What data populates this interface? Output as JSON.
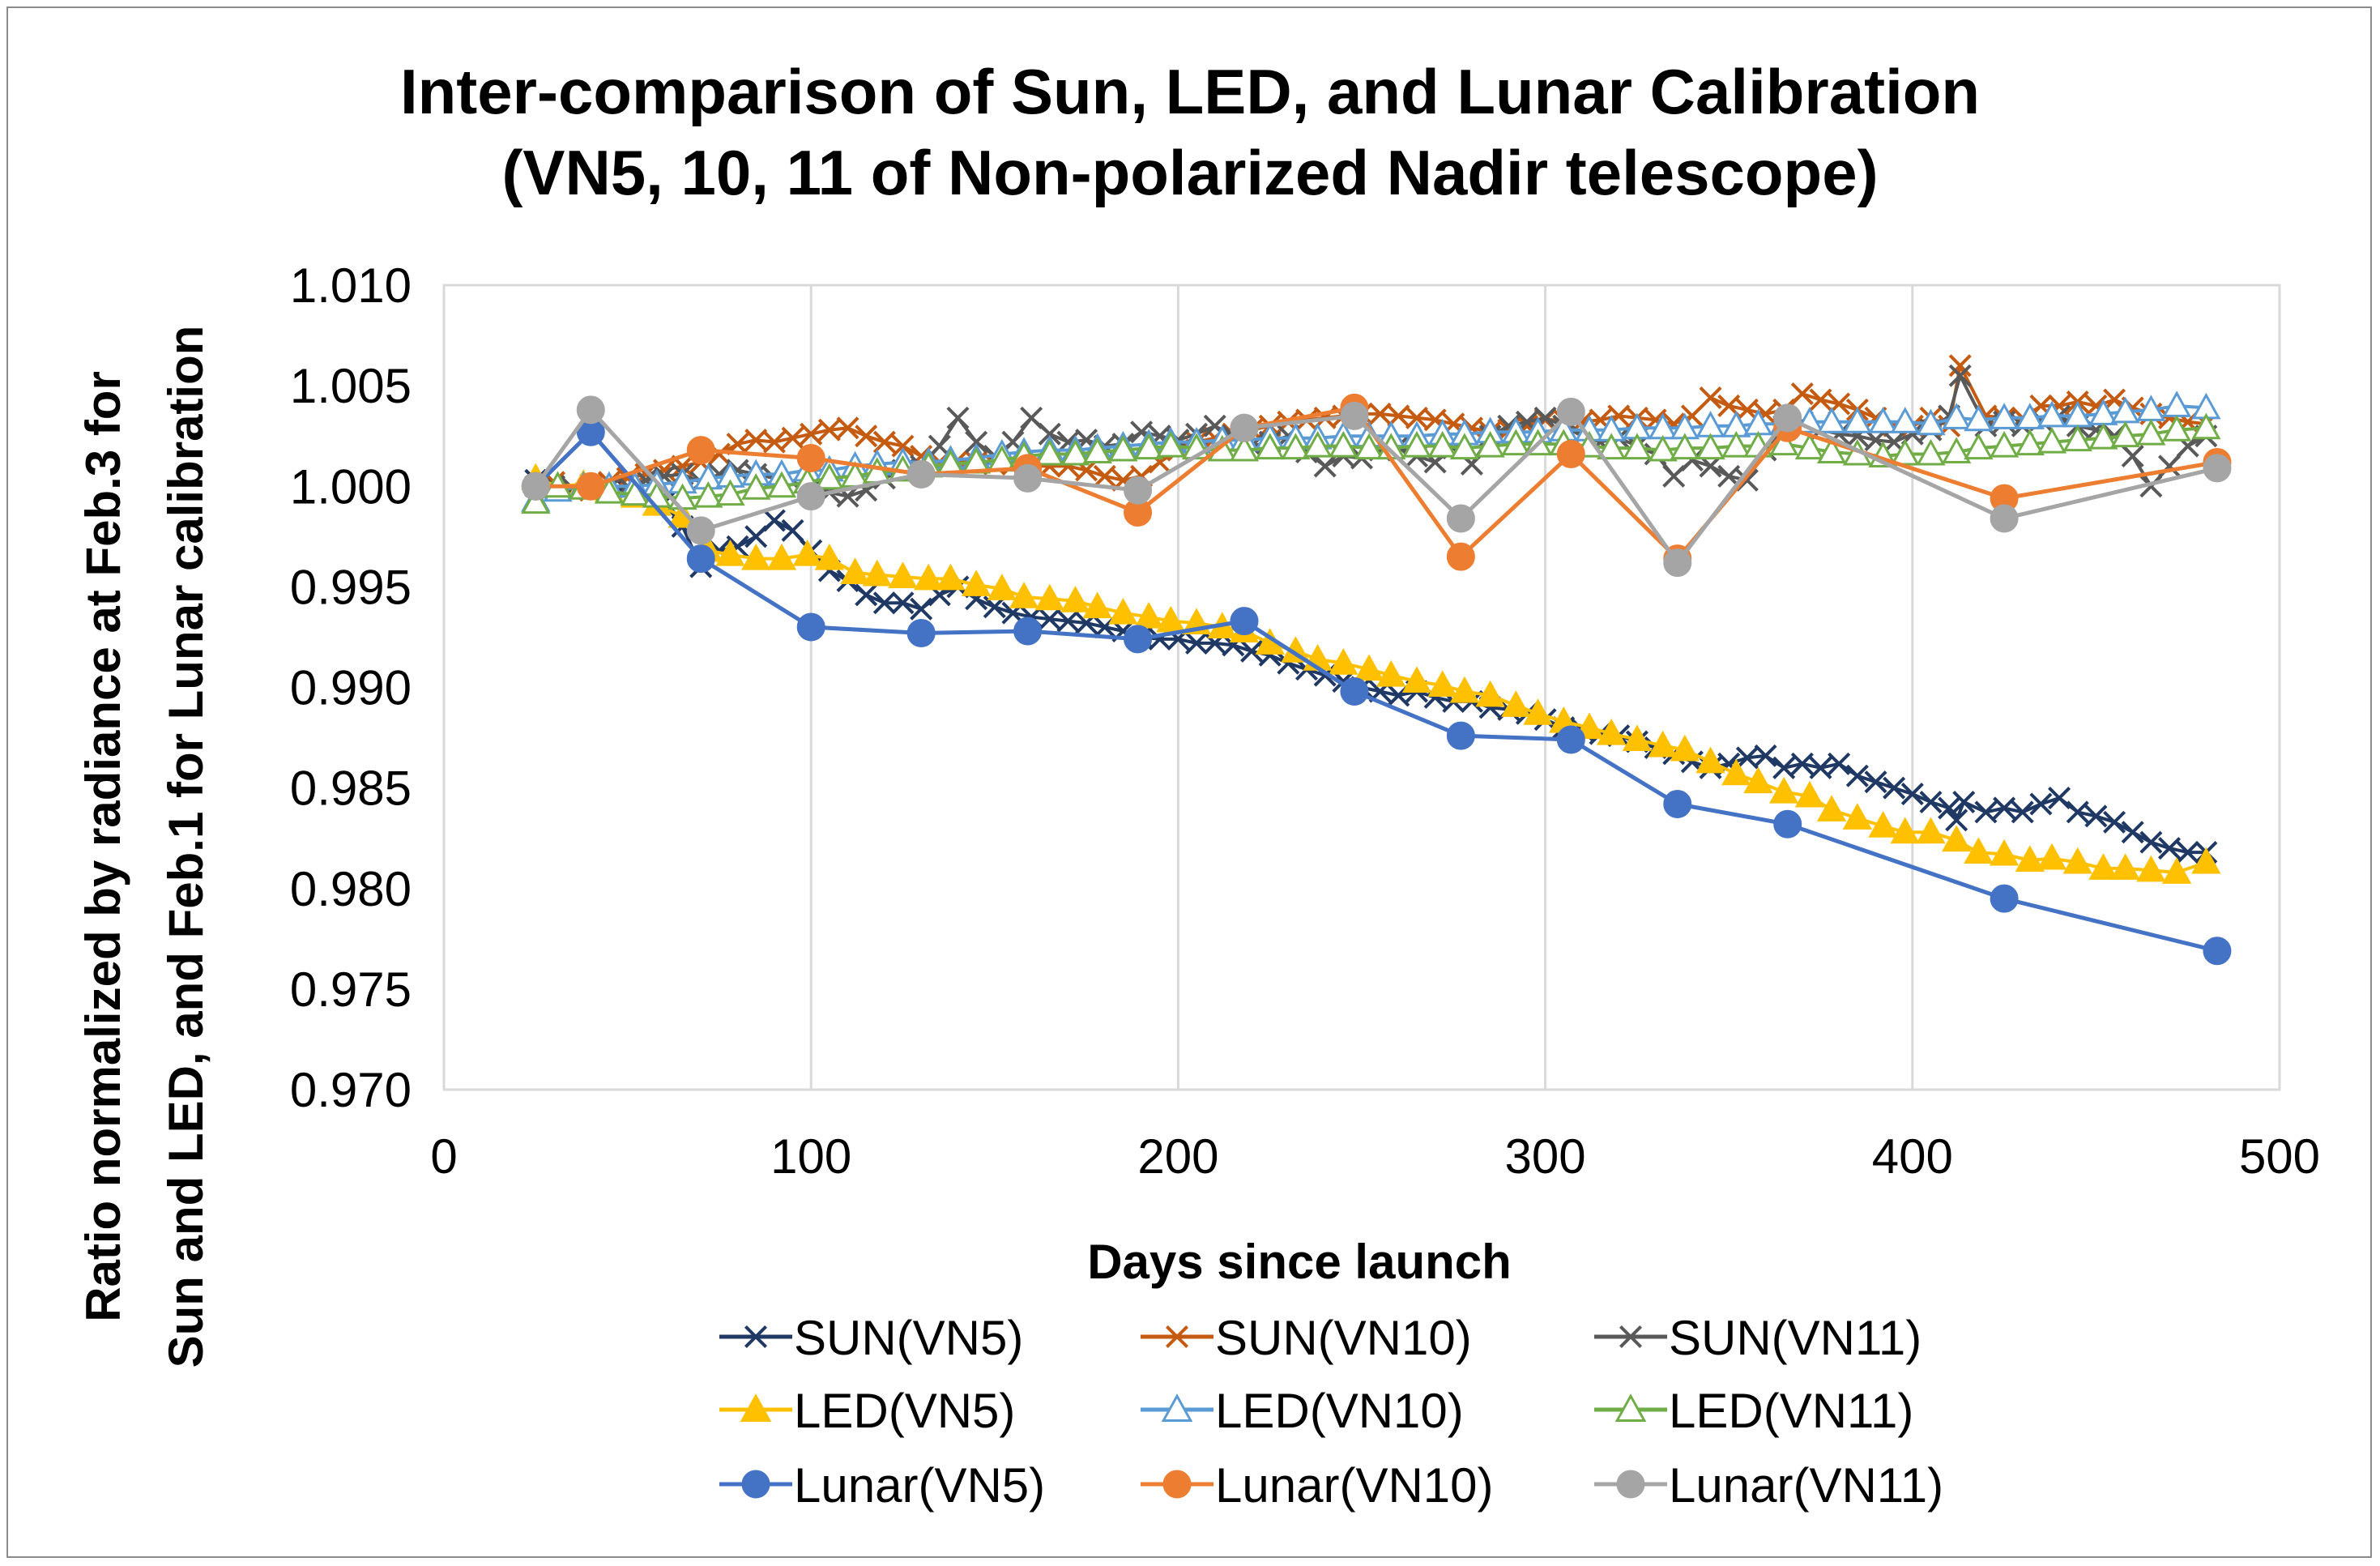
{
  "chart_data": {
    "type": "line",
    "title": [
      "Inter-comparison of Sun, LED, and Lunar Calibration",
      "(VN5, 10, 11 of Non-polarized Nadir telescope)"
    ],
    "xlabel": "Days since launch",
    "ylabel": [
      "Ratio normalized by radiance at Feb.3 for",
      "Sun and LED, and Feb.1 for Lunar calibration"
    ],
    "xlim": [
      0,
      500
    ],
    "ylim": [
      0.97,
      1.01
    ],
    "xticks": [
      0,
      100,
      200,
      300,
      400,
      500
    ],
    "xtick_labels": [
      "0",
      "100",
      "200",
      "300",
      "400",
      "500"
    ],
    "yticks": [
      0.97,
      0.975,
      0.98,
      0.985,
      0.99,
      0.995,
      1.0,
      1.005,
      1.01
    ],
    "ytick_labels": [
      "0.970",
      "0.975",
      "0.980",
      "0.985",
      "0.990",
      "0.995",
      "1.000",
      "1.005",
      "1.010"
    ],
    "grid": "vertical",
    "legend_position": "bottom",
    "series": [
      {
        "name": "SUN(VN5)",
        "color": "#1f3864",
        "marker": "x",
        "x": [
          25,
          30,
          35,
          40,
          45,
          50,
          55,
          60,
          65,
          70,
          75,
          80,
          85,
          90,
          95,
          100,
          105,
          110,
          115,
          120,
          125,
          130,
          135,
          140,
          145,
          150,
          155,
          160,
          165,
          170,
          175,
          180,
          185,
          190,
          195,
          200,
          205,
          210,
          215,
          220,
          225,
          230,
          235,
          240,
          245,
          250,
          255,
          260,
          265,
          270,
          275,
          280,
          285,
          290,
          295,
          300,
          305,
          310,
          315,
          320,
          325,
          330,
          335,
          340,
          345,
          350,
          355,
          360,
          365,
          370,
          375,
          380,
          385,
          390,
          395,
          400,
          405,
          410,
          412,
          414,
          420,
          425,
          430,
          435,
          440,
          445,
          450,
          455,
          460,
          465,
          470,
          475,
          480
        ],
        "y": [
          1.0003,
          1.0,
          0.9999,
          1.0,
          0.9999,
          0.9998,
          0.9996,
          0.9992,
          0.998,
          0.996,
          0.9968,
          0.997,
          0.9975,
          0.9983,
          0.9978,
          0.9968,
          0.9958,
          0.9953,
          0.9946,
          0.9942,
          0.9942,
          0.9939,
          0.9946,
          0.995,
          0.9944,
          0.994,
          0.9937,
          0.9935,
          0.9934,
          0.9933,
          0.9932,
          0.993,
          0.9928,
          0.9925,
          0.9924,
          0.9924,
          0.9922,
          0.9922,
          0.9921,
          0.9918,
          0.9916,
          0.9912,
          0.9909,
          0.9906,
          0.9903,
          0.99,
          0.9898,
          0.9896,
          0.9898,
          0.9895,
          0.9893,
          0.9893,
          0.989,
          0.9889,
          0.9887,
          0.9884,
          0.988,
          0.9879,
          0.9877,
          0.9876,
          0.9873,
          0.987,
          0.9867,
          0.9863,
          0.986,
          0.9862,
          0.9865,
          0.9866,
          0.986,
          0.9862,
          0.986,
          0.9862,
          0.9856,
          0.9853,
          0.985,
          0.9847,
          0.9843,
          0.984,
          0.9834,
          0.9843,
          0.9838,
          0.984,
          0.9838,
          0.9842,
          0.9845,
          0.9838,
          0.9836,
          0.9833,
          0.9828,
          0.9823,
          0.982,
          0.9818,
          0.9818
        ]
      },
      {
        "name": "SUN(VN10)",
        "color": "#c55a11",
        "marker": "x",
        "x": [
          25,
          30,
          35,
          40,
          45,
          50,
          55,
          60,
          65,
          70,
          75,
          80,
          85,
          90,
          95,
          100,
          105,
          110,
          115,
          120,
          125,
          130,
          135,
          140,
          145,
          150,
          155,
          160,
          165,
          170,
          175,
          180,
          185,
          190,
          195,
          200,
          205,
          210,
          215,
          220,
          225,
          230,
          235,
          240,
          245,
          250,
          255,
          260,
          265,
          270,
          275,
          280,
          285,
          290,
          295,
          300,
          305,
          310,
          315,
          320,
          325,
          330,
          335,
          340,
          345,
          350,
          355,
          360,
          365,
          370,
          375,
          380,
          385,
          390,
          395,
          400,
          405,
          410,
          413,
          420,
          425,
          430,
          435,
          440,
          445,
          450,
          455,
          460,
          465,
          470,
          475,
          480
        ],
        "y": [
          0.9995,
          1.0002,
          0.9998,
          1.0001,
          1.0002,
          1.0004,
          1.0006,
          1.0008,
          1.001,
          1.0012,
          1.0016,
          1.0021,
          1.0023,
          1.0022,
          1.0024,
          1.0026,
          1.0028,
          1.0029,
          1.0025,
          1.0022,
          1.002,
          1.0015,
          1.0012,
          1.0013,
          1.0012,
          1.0011,
          1.0011,
          1.001,
          1.001,
          1.001,
          1.0008,
          1.0005,
          1.0003,
          1.0005,
          1.0012,
          1.0018,
          1.0022,
          1.0024,
          1.0026,
          1.0028,
          1.003,
          1.0032,
          1.0033,
          1.0034,
          1.0035,
          1.0036,
          1.0036,
          1.0035,
          1.0034,
          1.0033,
          1.0031,
          1.0029,
          1.0027,
          1.0028,
          1.003,
          1.0033,
          1.0033,
          1.0032,
          1.0033,
          1.0035,
          1.0034,
          1.0033,
          1.0031,
          1.0035,
          1.0044,
          1.004,
          1.0038,
          1.0036,
          1.0038,
          1.0046,
          1.0043,
          1.0041,
          1.0038,
          1.0034,
          1.003,
          1.003,
          1.0034,
          1.003,
          1.006,
          1.0035,
          1.0034,
          1.0034,
          1.004,
          1.004,
          1.0042,
          1.004,
          1.0043,
          1.0039,
          1.0036,
          1.0034,
          1.0032,
          1.0031
        ]
      },
      {
        "name": "SUN(VN11)",
        "color": "#595959",
        "marker": "x",
        "x": [
          25,
          30,
          35,
          40,
          45,
          50,
          55,
          60,
          65,
          70,
          75,
          80,
          85,
          90,
          95,
          100,
          105,
          110,
          115,
          120,
          125,
          130,
          135,
          140,
          145,
          150,
          155,
          160,
          165,
          170,
          175,
          180,
          185,
          190,
          195,
          200,
          205,
          210,
          215,
          220,
          225,
          230,
          235,
          240,
          245,
          250,
          255,
          260,
          265,
          270,
          275,
          280,
          285,
          290,
          295,
          300,
          305,
          310,
          315,
          320,
          325,
          330,
          335,
          340,
          345,
          350,
          355,
          360,
          365,
          370,
          375,
          380,
          385,
          390,
          395,
          400,
          405,
          410,
          413,
          420,
          425,
          430,
          435,
          440,
          445,
          450,
          455,
          460,
          465,
          470,
          475,
          480
        ],
        "y": [
          1.0,
          1.0,
          0.9999,
          1.0,
          0.9999,
          1.0,
          1.0003,
          1.0005,
          1.0006,
          1.0002,
          1.0006,
          1.0008,
          1.0006,
          1.0004,
          1.0002,
          0.9999,
          0.9997,
          0.9995,
          0.9998,
          1.0004,
          1.0008,
          1.001,
          1.002,
          1.0034,
          1.0022,
          1.0015,
          1.0022,
          1.0034,
          1.0026,
          1.0022,
          1.0023,
          1.002,
          1.0021,
          1.0027,
          1.0025,
          1.0023,
          1.0026,
          1.003,
          1.0025,
          1.002,
          1.0022,
          1.0025,
          1.0017,
          1.001,
          1.0015,
          1.0014,
          1.0018,
          1.002,
          1.0015,
          1.0012,
          1.0019,
          1.0011,
          1.0025,
          1.003,
          1.0032,
          1.0034,
          1.003,
          1.0025,
          1.0022,
          1.0024,
          1.002,
          1.0016,
          1.0005,
          1.0013,
          1.001,
          1.0005,
          1.0003,
          1.0018,
          1.003,
          1.0032,
          1.0028,
          1.0026,
          1.0025,
          1.0023,
          1.0022,
          1.0026,
          1.0028,
          1.0035,
          1.0055,
          1.003,
          1.0032,
          1.003,
          1.0033,
          1.0035,
          1.003,
          1.0028,
          1.0025,
          1.0015,
          1.0,
          1.001,
          1.002,
          1.0025
        ]
      },
      {
        "name": "LED(VN5)",
        "color": "#ffc000",
        "marker": "triangle-filled",
        "x": [
          25,
          31,
          38,
          45,
          52,
          58,
          65,
          72,
          78,
          85,
          92,
          99,
          105,
          112,
          118,
          125,
          132,
          138,
          145,
          152,
          158,
          165,
          172,
          178,
          185,
          192,
          198,
          205,
          212,
          218,
          225,
          232,
          238,
          245,
          252,
          258,
          265,
          272,
          278,
          285,
          292,
          298,
          305,
          312,
          318,
          325,
          332,
          338,
          345,
          352,
          358,
          365,
          372,
          378,
          385,
          392,
          398,
          405,
          412,
          418,
          425,
          432,
          438,
          445,
          452,
          458,
          465,
          472,
          480
        ],
        "y": [
          1.0004,
          1.0,
          1.0001,
          0.9998,
          0.9995,
          0.9991,
          0.9985,
          0.9968,
          0.9966,
          0.9964,
          0.9964,
          0.9966,
          0.9964,
          0.9957,
          0.9956,
          0.9955,
          0.9954,
          0.9954,
          0.9951,
          0.9949,
          0.9945,
          0.9944,
          0.9943,
          0.994,
          0.9937,
          0.9935,
          0.9933,
          0.9932,
          0.993,
          0.9928,
          0.9922,
          0.9918,
          0.9914,
          0.9912,
          0.9909,
          0.9906,
          0.9903,
          0.9901,
          0.9898,
          0.9896,
          0.9891,
          0.9887,
          0.9883,
          0.988,
          0.9877,
          0.9874,
          0.9871,
          0.9869,
          0.9863,
          0.9857,
          0.9853,
          0.9848,
          0.9846,
          0.9839,
          0.9835,
          0.9831,
          0.9828,
          0.9828,
          0.9824,
          0.9818,
          0.9817,
          0.9814,
          0.9815,
          0.9813,
          0.981,
          0.981,
          0.9809,
          0.9808,
          0.9813
        ]
      },
      {
        "name": "LED(VN10)",
        "color": "#5b9bd5",
        "marker": "triangle-open",
        "x": [
          25,
          31,
          38,
          45,
          52,
          58,
          65,
          72,
          78,
          85,
          92,
          99,
          105,
          112,
          118,
          125,
          132,
          138,
          145,
          152,
          158,
          165,
          172,
          178,
          185,
          192,
          198,
          205,
          212,
          218,
          225,
          232,
          238,
          245,
          252,
          258,
          265,
          272,
          278,
          285,
          292,
          298,
          305,
          312,
          318,
          325,
          332,
          338,
          345,
          352,
          358,
          365,
          372,
          378,
          385,
          392,
          398,
          405,
          412,
          418,
          425,
          432,
          438,
          445,
          452,
          458,
          465,
          472,
          480
        ],
        "y": [
          0.9993,
          0.9998,
          1.0,
          1.0,
          1.0,
          1.0001,
          1.0002,
          1.0004,
          1.0005,
          1.0006,
          1.0006,
          1.0008,
          1.0008,
          1.001,
          1.0011,
          1.0012,
          1.0012,
          1.0013,
          1.0014,
          1.0016,
          1.0017,
          1.0018,
          1.0018,
          1.0019,
          1.002,
          1.0021,
          1.0022,
          1.0022,
          1.0023,
          1.0023,
          1.0024,
          1.0024,
          1.0024,
          1.0025,
          1.0025,
          1.0025,
          1.0025,
          1.0026,
          1.0026,
          1.0027,
          1.0027,
          1.0027,
          1.0028,
          1.0028,
          1.0028,
          1.0029,
          1.0029,
          1.0029,
          1.003,
          1.003,
          1.0031,
          1.0031,
          1.0032,
          1.0032,
          1.0032,
          1.0032,
          1.0032,
          1.0031,
          1.0034,
          1.0033,
          1.0034,
          1.0034,
          1.0035,
          1.0035,
          1.0036,
          1.0037,
          1.0038,
          1.004,
          1.0039
        ]
      },
      {
        "name": "LED(VN11)",
        "color": "#70ad47",
        "marker": "triangle-open",
        "x": [
          25,
          31,
          38,
          45,
          52,
          58,
          65,
          72,
          78,
          85,
          92,
          99,
          105,
          112,
          118,
          125,
          132,
          138,
          145,
          152,
          158,
          165,
          172,
          178,
          185,
          192,
          198,
          205,
          212,
          218,
          225,
          232,
          238,
          245,
          252,
          258,
          265,
          272,
          278,
          285,
          292,
          298,
          305,
          312,
          318,
          325,
          332,
          338,
          345,
          352,
          358,
          365,
          372,
          378,
          385,
          392,
          398,
          405,
          412,
          418,
          425,
          432,
          438,
          445,
          452,
          458,
          465,
          472,
          480
        ],
        "y": [
          0.9992,
          1.0,
          0.9999,
          0.9997,
          0.9996,
          0.9995,
          0.9994,
          0.9995,
          0.9996,
          0.9999,
          1.0,
          1.0002,
          1.0004,
          1.0005,
          1.0007,
          1.0008,
          1.001,
          1.0011,
          1.0012,
          1.0013,
          1.0015,
          1.0016,
          1.0016,
          1.0017,
          1.0018,
          1.0019,
          1.002,
          1.0019,
          1.0018,
          1.0018,
          1.0019,
          1.0019,
          1.002,
          1.002,
          1.0019,
          1.0019,
          1.002,
          1.002,
          1.0019,
          1.002,
          1.0021,
          1.0021,
          1.0021,
          1.002,
          1.0019,
          1.0019,
          1.0018,
          1.0019,
          1.0019,
          1.002,
          1.002,
          1.0021,
          1.0019,
          1.0017,
          1.0016,
          1.0015,
          1.0016,
          1.0016,
          1.0017,
          1.0019,
          1.002,
          1.0021,
          1.0022,
          1.0023,
          1.0024,
          1.0025,
          1.0026,
          1.0028,
          1.0029
        ]
      },
      {
        "name": "Lunar(VN5)",
        "color": "#4472c4",
        "marker": "circle",
        "x": [
          25,
          40,
          70,
          100,
          130,
          159,
          189,
          218,
          248,
          277,
          307,
          336,
          366,
          425,
          483
        ],
        "y": [
          1.0,
          1.0027,
          0.9964,
          0.993,
          0.9927,
          0.9928,
          0.9924,
          0.9933,
          0.9898,
          0.9876,
          0.9874,
          0.9842,
          0.9832,
          0.9795,
          0.9769
        ]
      },
      {
        "name": "Lunar(VN10)",
        "color": "#ed7d31",
        "marker": "circle",
        "x": [
          25,
          40,
          70,
          100,
          130,
          159,
          189,
          218,
          248,
          277,
          307,
          336,
          366,
          425,
          483
        ],
        "y": [
          1.0,
          1.0,
          1.0018,
          1.0014,
          1.0006,
          1.0009,
          0.9987,
          1.0029,
          1.0039,
          0.9965,
          1.0016,
          0.9964,
          1.0029,
          0.9994,
          1.0012
        ]
      },
      {
        "name": "Lunar(VN11)",
        "color": "#a5a5a5",
        "marker": "circle",
        "x": [
          25,
          40,
          70,
          100,
          130,
          159,
          189,
          218,
          248,
          277,
          307,
          336,
          366,
          425,
          483
        ],
        "y": [
          1.0,
          1.0038,
          0.9978,
          0.9995,
          1.0006,
          1.0004,
          0.9998,
          1.0029,
          1.0035,
          0.9984,
          1.0037,
          0.9962,
          1.0034,
          0.9984,
          1.0009
        ]
      }
    ]
  }
}
